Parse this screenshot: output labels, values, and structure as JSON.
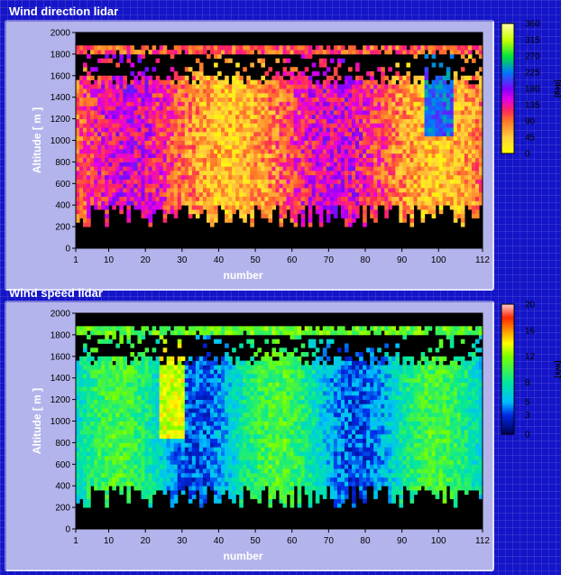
{
  "chart_data": [
    {
      "type": "heatmap",
      "title": "Wind direction lidar",
      "xlabel": "number",
      "ylabel": "Altitude [ m ]",
      "xlim": [
        1,
        112
      ],
      "ylim": [
        0,
        2000
      ],
      "xticks": [
        1,
        10,
        20,
        30,
        40,
        50,
        60,
        70,
        80,
        90,
        100,
        112
      ],
      "yticks": [
        0,
        200,
        400,
        600,
        800,
        1000,
        1200,
        1400,
        1600,
        1800,
        2000
      ],
      "colorbar": {
        "unit": "[deg]",
        "range": [
          0,
          360
        ],
        "ticks": [
          0,
          45,
          90,
          135,
          180,
          225,
          270,
          315,
          360
        ]
      },
      "grid": false
    },
    {
      "type": "heatmap",
      "title": "Wind speed lidar",
      "xlabel": "number",
      "ylabel": "Altitude [ m ]",
      "xlim": [
        1,
        112
      ],
      "ylim": [
        0,
        2000
      ],
      "xticks": [
        1,
        10,
        20,
        30,
        40,
        50,
        60,
        70,
        80,
        90,
        100,
        112
      ],
      "yticks": [
        0,
        200,
        400,
        600,
        800,
        1000,
        1200,
        1400,
        1600,
        1800,
        2000
      ],
      "colorbar": {
        "unit": "[m/s]",
        "range": [
          0,
          20
        ],
        "ticks": [
          0,
          3,
          5,
          8,
          12,
          16,
          20
        ]
      },
      "grid": false
    }
  ]
}
